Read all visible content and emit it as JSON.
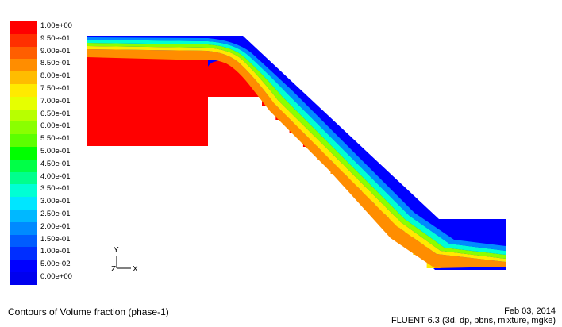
{
  "plot": {
    "title": "Contours of Volume fraction (phase-1)",
    "date": "Feb 03, 2014",
    "solver": "FLUENT 6.3 (3d, dp, pbns, mixture, mgke)"
  },
  "legend": {
    "labels": [
      "1.00e+00",
      "9.50e-01",
      "9.00e-01",
      "8.50e-01",
      "8.00e-01",
      "7.50e-01",
      "7.00e-01",
      "6.50e-01",
      "6.00e-01",
      "5.50e-01",
      "5.00e-01",
      "4.50e-01",
      "4.00e-01",
      "3.50e-01",
      "3.00e-01",
      "2.50e-01",
      "2.00e-01",
      "1.50e-01",
      "1.00e-01",
      "5.00e-02",
      "0.00e+00"
    ],
    "colors": [
      "#ff0000",
      "#ff2f00",
      "#ff5e00",
      "#ff8d00",
      "#ffbc00",
      "#ffea00",
      "#e6ff00",
      "#b8ff00",
      "#8aff00",
      "#5cff00",
      "#00ff00",
      "#00ff47",
      "#00ff8d",
      "#00ffd4",
      "#00e6ff",
      "#00b8ff",
      "#008aff",
      "#005cff",
      "#002eff",
      "#0000ff",
      "#0000ee"
    ]
  },
  "axes": {
    "y": "Y",
    "z": "Z",
    "x": "X"
  },
  "colors": {
    "water": "#ff0000",
    "air": "#0000ff",
    "interface_yellow": "#ffea00",
    "interface_green": "#8aff00",
    "interface_cyan": "#00ffd4",
    "interface_orange": "#ff8d00"
  }
}
